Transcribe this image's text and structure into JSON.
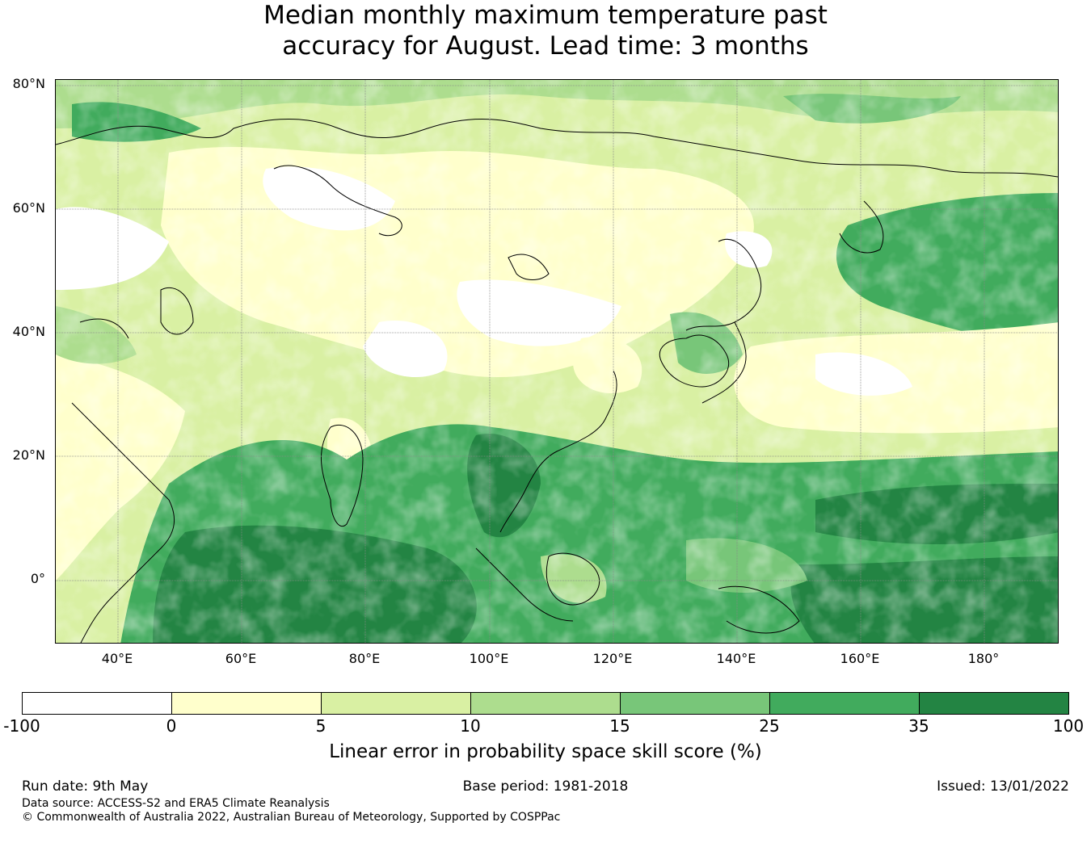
{
  "title": {
    "line1": "Median monthly maximum temperature past",
    "line2": "accuracy for August. Lead time: 3 months"
  },
  "map": {
    "lat_labels": [
      "80°N",
      "60°N",
      "40°N",
      "20°N",
      "0°"
    ],
    "lon_labels": [
      "40°E",
      "60°E",
      "80°E",
      "100°E",
      "120°E",
      "140°E",
      "160°E",
      "180°"
    ],
    "colors": {
      "lowest": "#ffffff",
      "0_5": "#ffffcc",
      "5_10": "#d9f0a3",
      "10_15": "#addd8e",
      "15_25": "#78c679",
      "25_35": "#41ab5d",
      "35_100": "#238443",
      "coastline": "#000000"
    }
  },
  "colorbar": {
    "boundaries": [
      "-100",
      "0",
      "5",
      "10",
      "15",
      "25",
      "35",
      "100"
    ],
    "colors": [
      "#ffffff",
      "#ffffcc",
      "#d9f0a3",
      "#addd8e",
      "#78c679",
      "#41ab5d",
      "#238443"
    ],
    "label": "Linear error in probability space skill score (%)"
  },
  "footer": {
    "run_date": "Run date: 9th May",
    "base_period": "Base period: 1981-2018",
    "issued": "Issued: 13/01/2022",
    "data_source": "Data source: ACCESS-S2 and ERA5 Climate Reanalysis",
    "copyright": "© Commonwealth of Australia 2022, Australian Bureau of Meteorology, Supported by COSPPac"
  }
}
